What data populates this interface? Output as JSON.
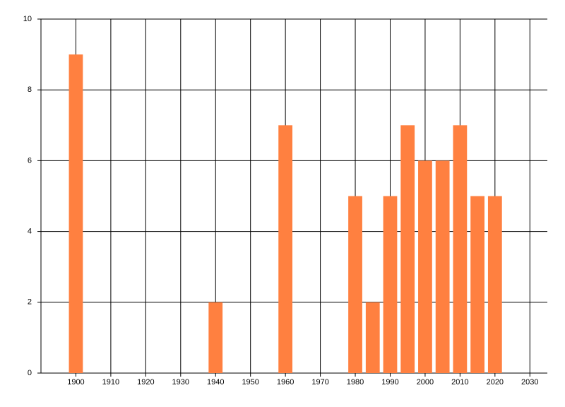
{
  "chart_data": {
    "type": "bar",
    "x": [
      1900,
      1940,
      1960,
      1980,
      1985,
      1990,
      1995,
      2000,
      2005,
      2010,
      2015,
      2020
    ],
    "values": [
      9,
      2,
      7,
      5,
      2,
      5,
      7,
      6,
      6,
      7,
      5,
      5
    ],
    "color": "#ff8040",
    "xlim": [
      1890,
      2035
    ],
    "xticks": [
      1900,
      1910,
      1920,
      1930,
      1940,
      1950,
      1960,
      1970,
      1980,
      1990,
      2000,
      2010,
      2020,
      2030
    ],
    "ylim": [
      0,
      10
    ],
    "yticks": [
      0,
      2,
      4,
      6,
      8,
      10
    ],
    "grid": true
  }
}
